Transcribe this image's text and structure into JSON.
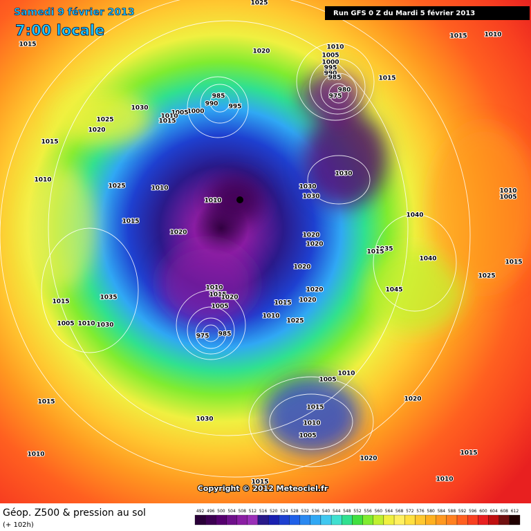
{
  "header": {
    "date": "Samedi 9 février 2013",
    "time": "7:00 locale",
    "run": "Run GFS 0 Z du Mardi 5 février 2013"
  },
  "copyright": "Copyright © 2012 Meteociel.fr",
  "legend": {
    "title": "Géop. Z500 & pression au sol",
    "lead": "(+ 102h)"
  },
  "colorbar": {
    "values": [
      492,
      496,
      500,
      504,
      508,
      512,
      516,
      520,
      524,
      528,
      532,
      536,
      540,
      544,
      548,
      552,
      556,
      560,
      564,
      568,
      572,
      576,
      580,
      584,
      588,
      592,
      596,
      600,
      604,
      608,
      612
    ],
    "colors": [
      "#2a0038",
      "#3d0052",
      "#55006e",
      "#6e108a",
      "#8a1ea3",
      "#9a30b8",
      "#2a1a8a",
      "#1a20b0",
      "#1e40d0",
      "#2060e8",
      "#2a88f0",
      "#30a8f4",
      "#40c8f0",
      "#40e0d0",
      "#30e090",
      "#40e040",
      "#80ec30",
      "#c0f030",
      "#f0f040",
      "#fff060",
      "#ffe040",
      "#ffc830",
      "#ffb020",
      "#ff9820",
      "#ff8020",
      "#ff6020",
      "#f84020",
      "#e82020",
      "#c01010",
      "#701010",
      "#200000"
    ]
  },
  "isobar_labels": [
    "1025",
    "1015",
    "1020",
    "1010",
    "1005",
    "1000",
    "995",
    "990",
    "985",
    "980",
    "975",
    "1015",
    "1015",
    "1010",
    "985",
    "990",
    "995",
    "1000",
    "1005",
    "1010",
    "1015",
    "1030",
    "1025",
    "1020",
    "1015",
    "1010",
    "1025",
    "1010",
    "1010",
    "1030",
    "1030",
    "1030",
    "1015",
    "1020",
    "1020",
    "1020",
    "1040",
    "1010",
    "1005",
    "1035",
    "1015",
    "1040",
    "1015",
    "1025",
    "1020",
    "1045",
    "1020",
    "1020",
    "1015",
    "1010",
    "1025",
    "1035",
    "1015",
    "1005",
    "1010",
    "1030",
    "1010",
    "1015",
    "1020",
    "1005",
    "975",
    "985",
    "1005",
    "1010",
    "1015",
    "1010",
    "1005",
    "1020",
    "1015",
    "1030",
    "1020",
    "1015",
    "1010",
    "1015",
    "1010"
  ]
}
